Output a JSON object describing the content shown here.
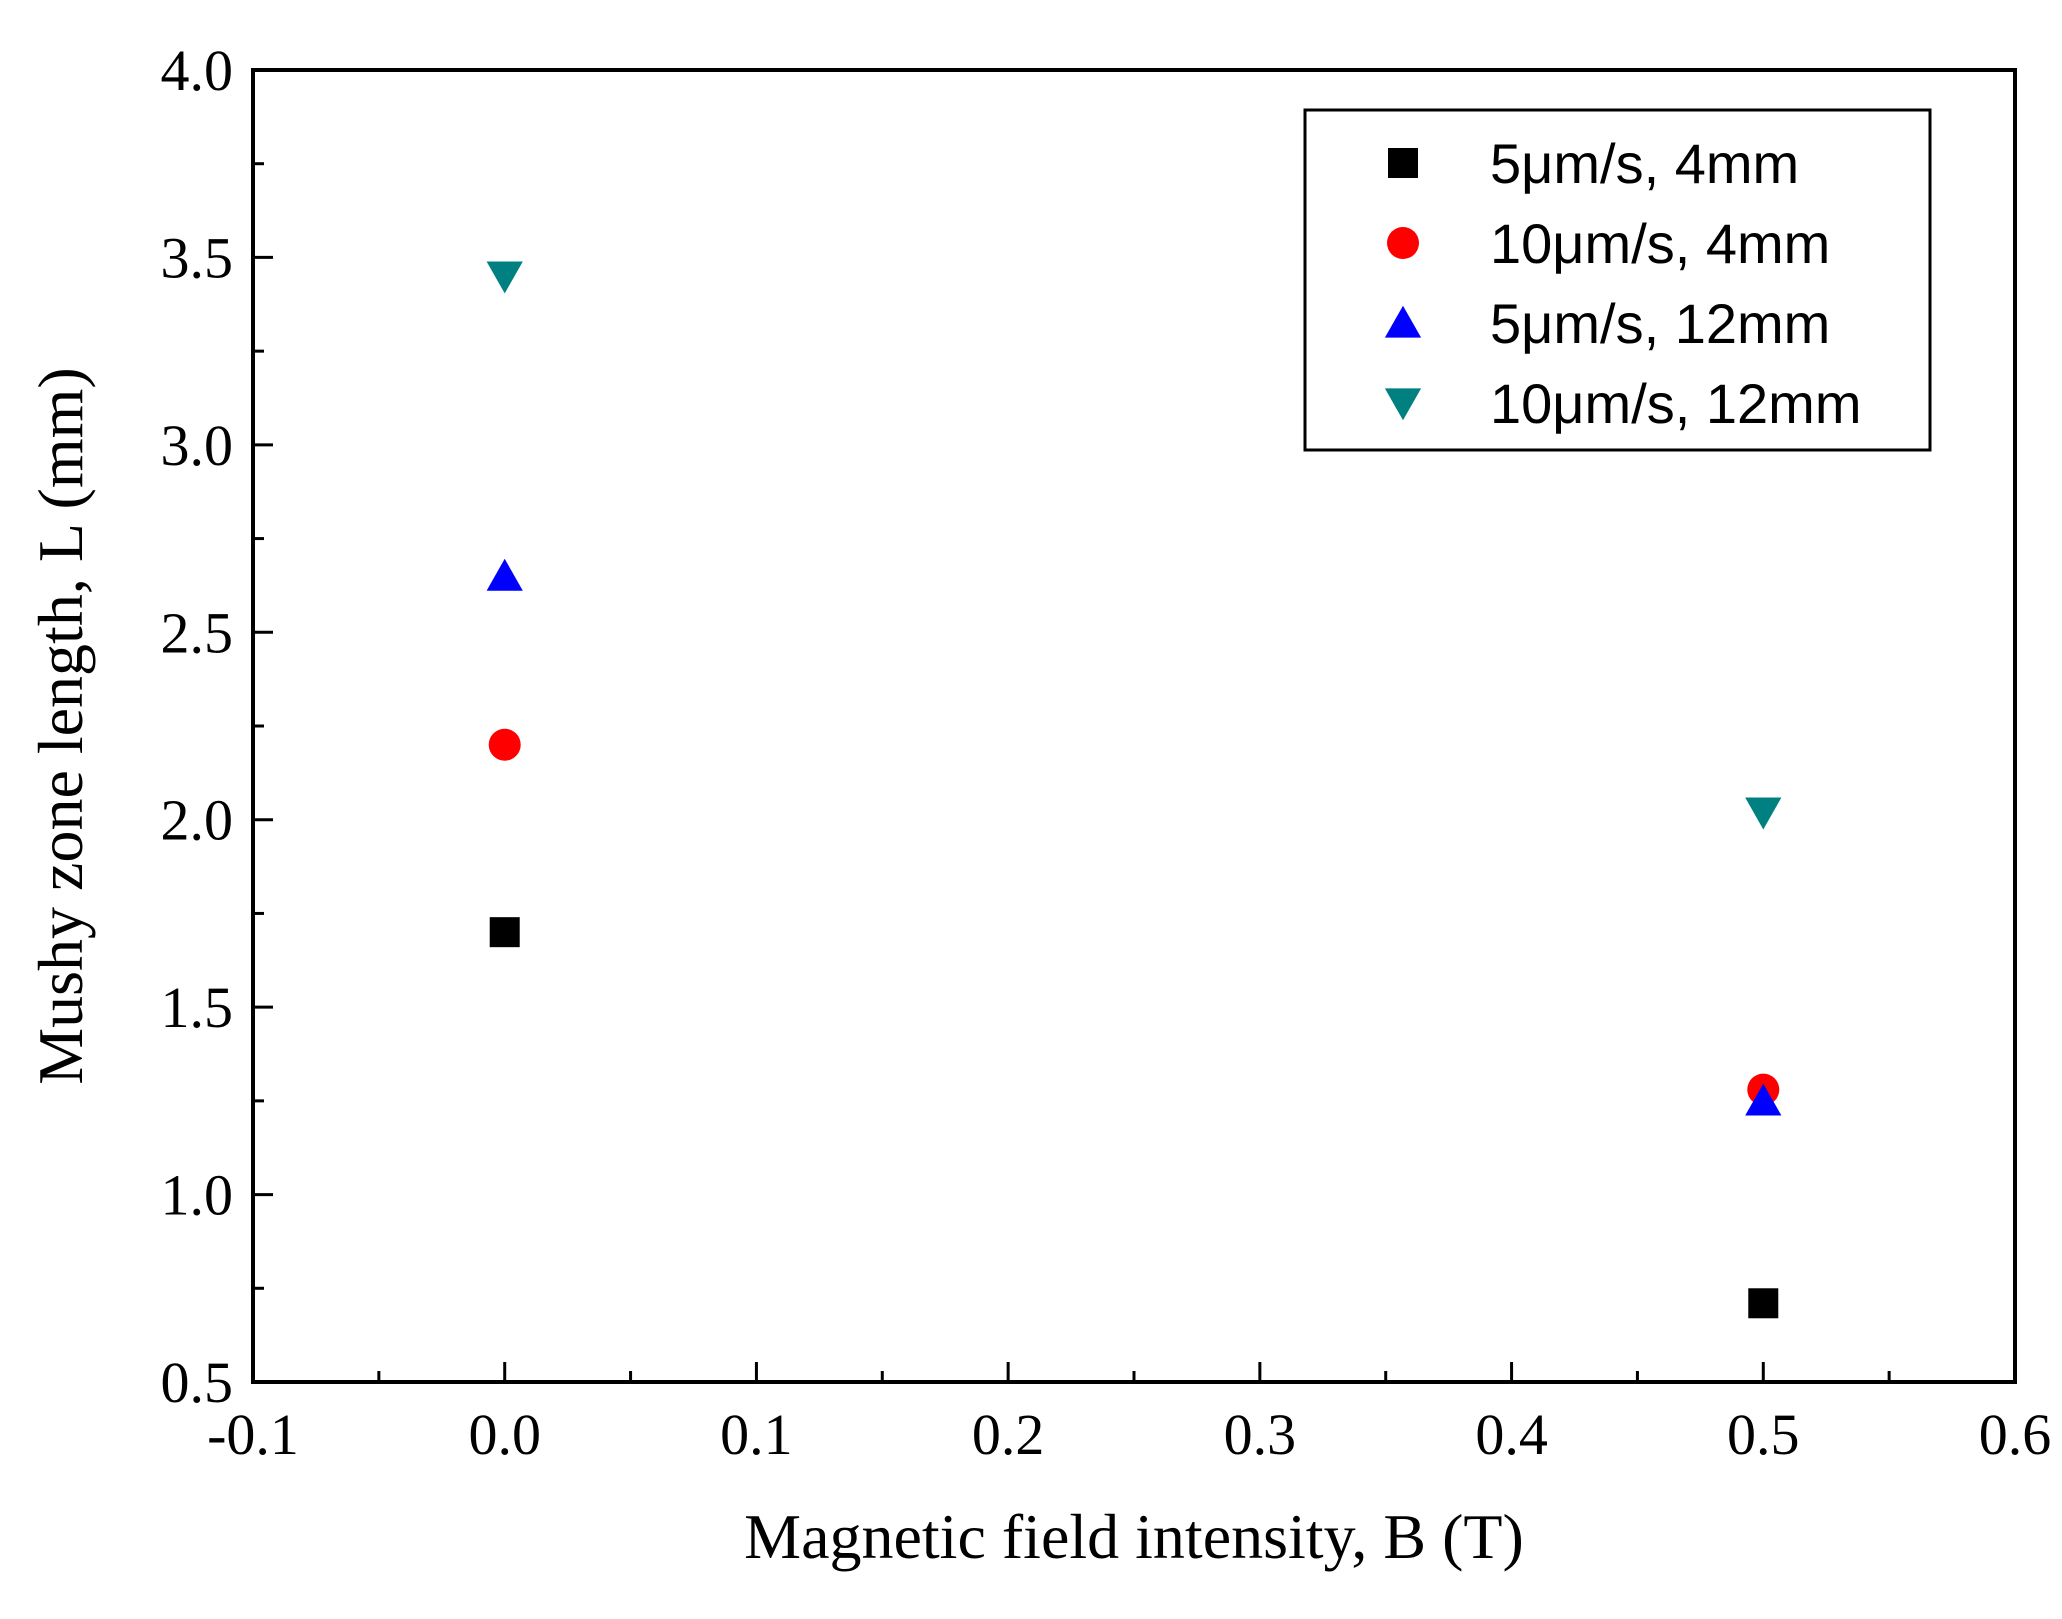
{
  "chart_data": {
    "type": "scatter",
    "title": "",
    "xlabel": "Magnetic field intensity, B (T)",
    "ylabel": "Mushy zone length, L (mm)",
    "xlim": [
      -0.1,
      0.6
    ],
    "ylim": [
      0.5,
      4.0
    ],
    "x_major_ticks": [
      -0.1,
      0.0,
      0.1,
      0.2,
      0.3,
      0.4,
      0.5,
      0.6
    ],
    "x_tick_labels": [
      "-0.1",
      "0.0",
      "0.1",
      "0.2",
      "0.3",
      "0.4",
      "0.5",
      "0.6"
    ],
    "y_major_ticks": [
      0.5,
      1.0,
      1.5,
      2.0,
      2.5,
      3.0,
      3.5,
      4.0
    ],
    "y_tick_labels": [
      "0.5",
      "1.0",
      "1.5",
      "2.0",
      "2.5",
      "3.0",
      "3.5",
      "4.0"
    ],
    "grid": false,
    "legend_position": "top-right",
    "series": [
      {
        "name": "5μm/s, 4mm",
        "marker": "square",
        "color": "#000000",
        "x": [
          0.0,
          0.5
        ],
        "y": [
          1.7,
          0.71
        ]
      },
      {
        "name": "10μm/s, 4mm",
        "marker": "circle",
        "color": "#ff0000",
        "x": [
          0.0,
          0.5
        ],
        "y": [
          2.2,
          1.28
        ]
      },
      {
        "name": "5μm/s, 12mm",
        "marker": "triangle-up",
        "color": "#0000ff",
        "x": [
          0.0,
          0.5
        ],
        "y": [
          2.65,
          1.25
        ]
      },
      {
        "name": "10μm/s, 12mm",
        "marker": "triangle-down",
        "color": "#008080",
        "x": [
          0.0,
          0.5
        ],
        "y": [
          3.45,
          2.02
        ]
      }
    ]
  }
}
